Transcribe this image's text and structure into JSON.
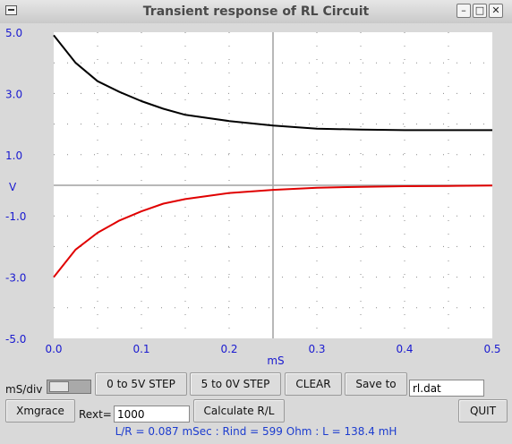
{
  "window": {
    "title": "Transient response of RL Circuit"
  },
  "plot": {
    "y_ticks": [
      "5.0",
      "3.0",
      "1.0",
      "-1.0",
      "-3.0",
      "-5.0"
    ],
    "x_ticks": [
      "0.0",
      "0.1",
      "0.2",
      "0.3",
      "0.4",
      "0.5"
    ],
    "y_label": "V",
    "x_label": "mS",
    "colors": {
      "axis_text": "#1a1ad0",
      "curve_upper": "#000000",
      "curve_lower": "#e00000",
      "background": "#ffffff"
    }
  },
  "chart_data": {
    "type": "line",
    "xlabel": "mS",
    "ylabel": "V",
    "xlim": [
      0,
      0.5
    ],
    "ylim": [
      -5,
      5
    ],
    "grid": true,
    "x": [
      0,
      0.025,
      0.05,
      0.075,
      0.1,
      0.125,
      0.15,
      0.175,
      0.2,
      0.25,
      0.3,
      0.35,
      0.4,
      0.45,
      0.5
    ],
    "series": [
      {
        "color": "#000000",
        "values": [
          4.9,
          4.0,
          3.4,
          3.05,
          2.75,
          2.5,
          2.3,
          2.2,
          2.1,
          1.95,
          1.85,
          1.82,
          1.8,
          1.8,
          1.8
        ]
      },
      {
        "color": "#e00000",
        "values": [
          -3.0,
          -2.1,
          -1.55,
          -1.15,
          -0.85,
          -0.6,
          -0.45,
          -0.35,
          -0.25,
          -0.15,
          -0.08,
          -0.05,
          -0.03,
          -0.02,
          -0.01
        ]
      }
    ]
  },
  "controls": {
    "ms_div_label": "mS/div",
    "step_up_label": "0 to 5V STEP",
    "step_down_label": "5 to 0V STEP",
    "clear_label": "CLEAR",
    "save_label": "Save to",
    "filename": "rl.dat",
    "xmgrace_label": "Xmgrace",
    "rext_label": "Rext=",
    "rext_value": "1000",
    "calc_label": "Calculate R/L",
    "quit_label": "QUIT"
  },
  "status": {
    "text": "L/R = 0.087 mSec : Rind =    599 Ohm : L = 138.4 mH"
  }
}
